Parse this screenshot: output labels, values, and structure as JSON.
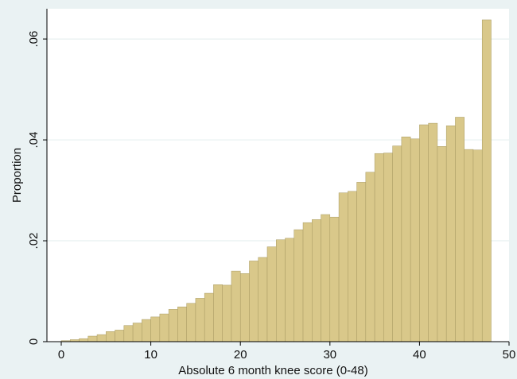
{
  "colors": {
    "background": "#eaf2f3",
    "plot_area": "#ffffff",
    "bar_fill": "#d9c88a",
    "bar_edge": "#a89a62",
    "grid": "#e7f0f1",
    "axis": "#000000"
  },
  "chart_data": {
    "type": "bar",
    "title": "",
    "xlabel": "Absolute 6 month knee score (0-48)",
    "ylabel": "Proportion",
    "xlim": [
      -1.6,
      50
    ],
    "ylim": [
      0,
      0.066
    ],
    "xticks": [
      0,
      10,
      20,
      30,
      40,
      50
    ],
    "xtick_labels": [
      "0",
      "10",
      "20",
      "30",
      "40",
      "50"
    ],
    "yticks": [
      0,
      0.02,
      0.04,
      0.06
    ],
    "ytick_labels": [
      "0",
      ".02",
      ".04",
      ".06"
    ],
    "grid": true,
    "legend": "none",
    "bin_width": 1,
    "bin_starts": [
      0,
      1,
      2,
      3,
      4,
      5,
      6,
      7,
      8,
      9,
      10,
      11,
      12,
      13,
      14,
      15,
      16,
      17,
      18,
      19,
      20,
      21,
      22,
      23,
      24,
      25,
      26,
      27,
      28,
      29,
      30,
      31,
      32,
      33,
      34,
      35,
      36,
      37,
      38,
      39,
      40,
      41,
      42,
      43,
      44,
      45,
      46,
      47
    ],
    "values": [
      0.0002,
      0.0004,
      0.0006,
      0.0011,
      0.0014,
      0.002,
      0.0023,
      0.0032,
      0.0037,
      0.0044,
      0.0049,
      0.0055,
      0.0064,
      0.0069,
      0.0076,
      0.0086,
      0.0096,
      0.0113,
      0.0112,
      0.014,
      0.0135,
      0.016,
      0.0167,
      0.0188,
      0.0202,
      0.0205,
      0.0222,
      0.0236,
      0.0242,
      0.0252,
      0.0247,
      0.0295,
      0.0298,
      0.0316,
      0.0336,
      0.0373,
      0.0374,
      0.0388,
      0.0406,
      0.0402,
      0.043,
      0.0433,
      0.0387,
      0.0428,
      0.0445,
      0.0381,
      0.038,
      0.0638
    ]
  }
}
